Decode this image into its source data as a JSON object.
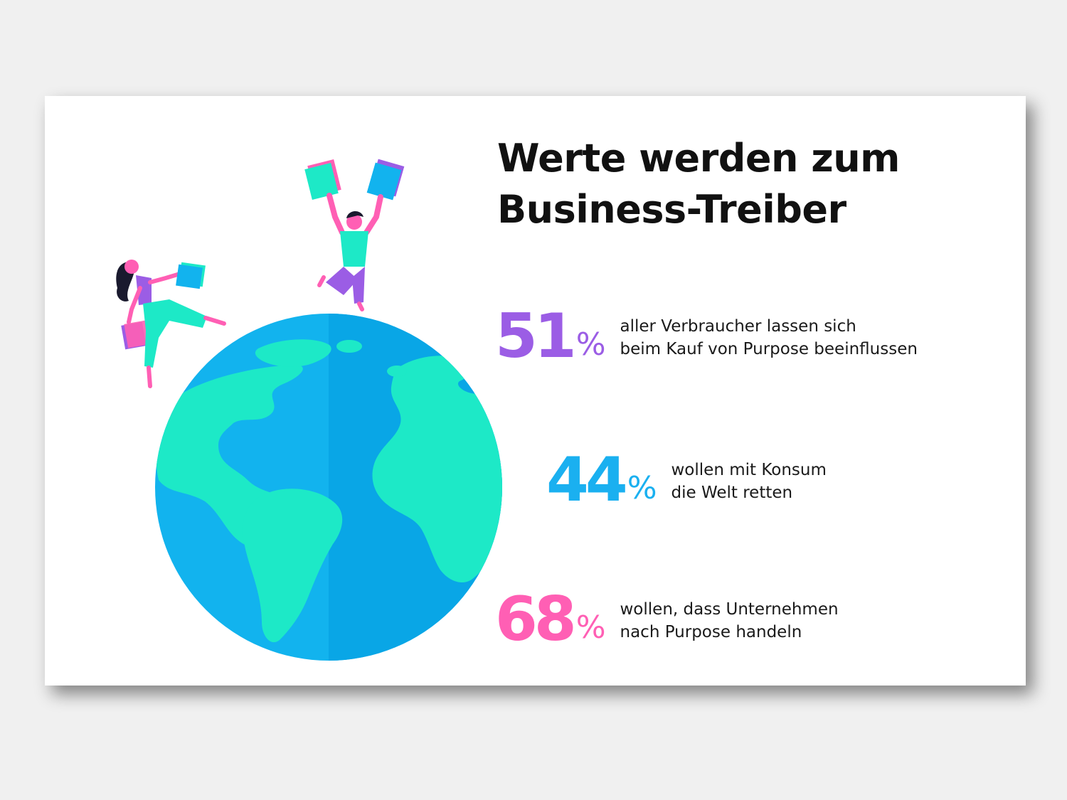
{
  "title": {
    "line1": "Werte werden zum",
    "line2": "Business-Treiber"
  },
  "stats": [
    {
      "value": "51",
      "unit": "%",
      "line1": "aller Verbraucher lassen sich",
      "line2": "beim Kauf von Purpose beeinflussen",
      "color": "#9b5de5"
    },
    {
      "value": "44",
      "unit": "%",
      "line1": "wollen mit Konsum",
      "line2": "die Welt retten",
      "color": "#1ab0f0"
    },
    {
      "value": "68",
      "unit": "%",
      "line1": "wollen, dass Unternehmen",
      "line2": "nach Purpose handeln",
      "color": "#ff5fb4"
    }
  ],
  "colors": {
    "ocean": "#12b3ee",
    "land": "#1de9c7",
    "purple": "#9b5de5",
    "blue": "#1ab0f0",
    "pink": "#ff5fb4"
  },
  "icons": [
    "globe-icon",
    "shopping-woman-figure",
    "jumping-man-figure",
    "shopping-bag-icon"
  ]
}
